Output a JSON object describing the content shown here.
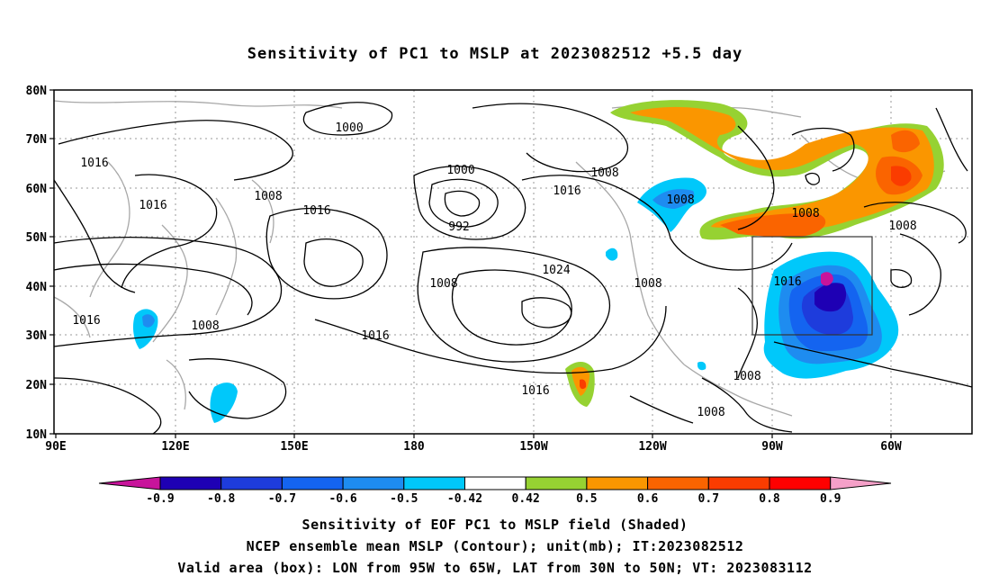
{
  "title": "Sensitivity of PC1 to MSLP at 2023082512 +5.5 day",
  "axes": {
    "lat_labels": [
      "80N",
      "70N",
      "60N",
      "50N",
      "40N",
      "30N",
      "20N",
      "10N"
    ],
    "lon_labels": [
      "90E",
      "120E",
      "150E",
      "180",
      "150W",
      "120W",
      "90W",
      "60W"
    ]
  },
  "contour_labels": [
    "1000",
    "1016",
    "1008",
    "1016",
    "1016",
    "1000",
    "992",
    "1008",
    "1016",
    "1008",
    "1024",
    "1008",
    "1016",
    "1016",
    "1008",
    "1008",
    "1016",
    "1008",
    "1008",
    "1016"
  ],
  "colorbar": {
    "labels": [
      "-0.9",
      "-0.8",
      "-0.7",
      "-0.6",
      "-0.5",
      "-0.42",
      "0.42",
      "0.5",
      "0.6",
      "0.7",
      "0.8",
      "0.9"
    ],
    "colors": [
      "#1e00b4",
      "#1e3cdc",
      "#1464f0",
      "#1e8cf0",
      "#00c8fa",
      "#ffffff",
      "#96d232",
      "#fa9600",
      "#fa6400",
      "#fa3c00",
      "#ff0000"
    ],
    "low_end_color": "#c8149b",
    "high_end_color": "#f5a0c8"
  },
  "captions": {
    "line1": "Sensitivity of EOF PC1 to MSLP field (Shaded)",
    "line2": "NCEP ensemble mean MSLP (Contour); unit(mb); IT:2023082512",
    "line3": "Valid area (box): LON from 95W to 65W, LAT from 30N to 50N; VT: 2023083112"
  },
  "valid_area": {
    "lon_min": "95W",
    "lon_max": "65W",
    "lat_min": "30N",
    "lat_max": "50N"
  }
}
